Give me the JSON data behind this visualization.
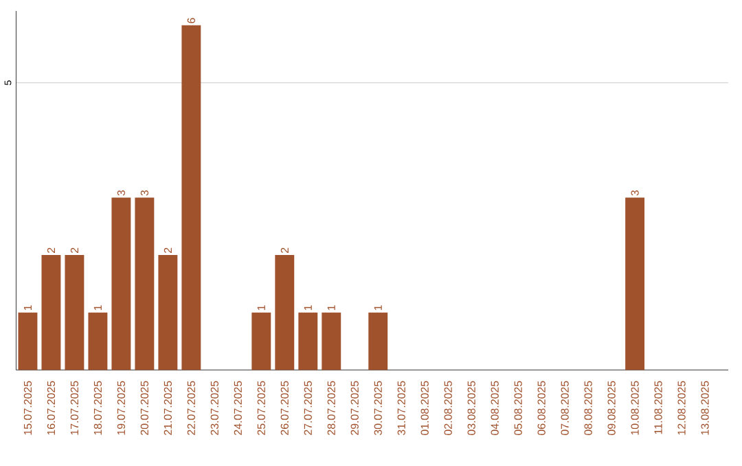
{
  "chart_data": {
    "type": "bar",
    "categories": [
      "15.07.2025",
      "16.07.2025",
      "17.07.2025",
      "18.07.2025",
      "19.07.2025",
      "20.07.2025",
      "21.07.2025",
      "22.07.2025",
      "23.07.2025",
      "24.07.2025",
      "25.07.2025",
      "26.07.2025",
      "27.07.2025",
      "28.07.2025",
      "29.07.2025",
      "30.07.2025",
      "31.07.2025",
      "01.08.2025",
      "02.08.2025",
      "03.08.2025",
      "04.08.2025",
      "05.08.2025",
      "06.08.2025",
      "07.08.2025",
      "08.08.2025",
      "09.08.2025",
      "10.08.2025",
      "11.08.2025",
      "12.08.2025",
      "13.08.2025"
    ],
    "values": [
      1,
      2,
      2,
      1,
      3,
      3,
      2,
      6,
      0,
      0,
      1,
      2,
      1,
      1,
      0,
      1,
      0,
      0,
      0,
      0,
      0,
      0,
      0,
      0,
      0,
      0,
      3,
      0,
      0,
      0
    ],
    "value_labels": [
      "1",
      "2",
      "2",
      "1",
      "3",
      "3",
      "2",
      "6",
      null,
      null,
      "1",
      "2",
      "1",
      "1",
      null,
      "1",
      null,
      null,
      null,
      null,
      null,
      null,
      null,
      null,
      null,
      null,
      "3",
      null,
      null,
      null
    ],
    "color": "#a0522d",
    "ylim": [
      0,
      6.25
    ],
    "yticks": [
      5
    ],
    "grid": "y"
  }
}
